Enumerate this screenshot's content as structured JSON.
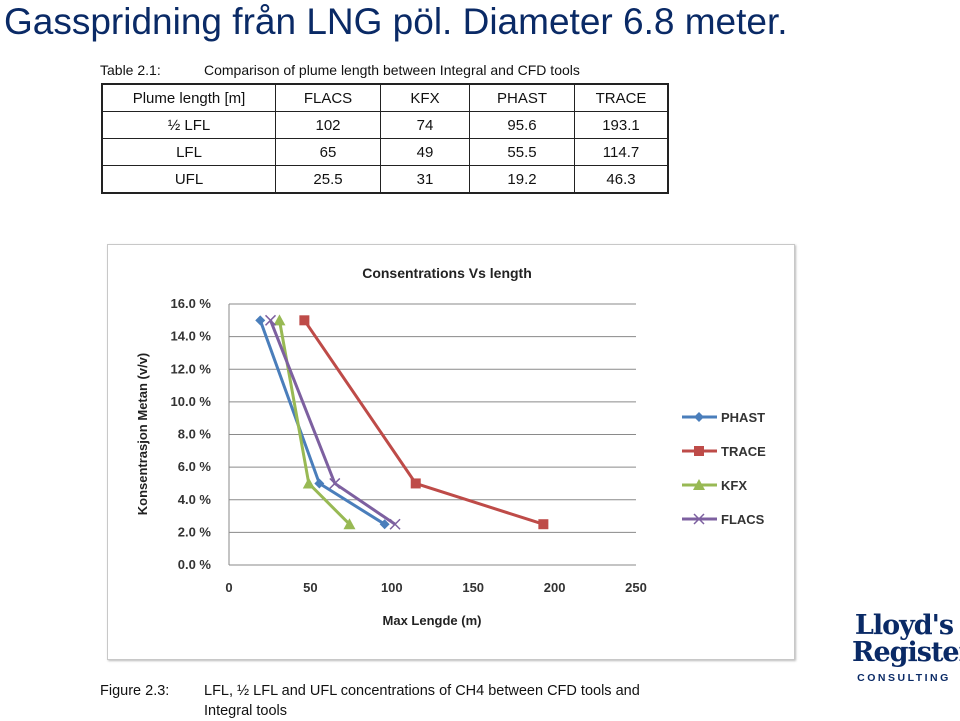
{
  "slide": {
    "title": "Gasspridning från LNG pöl. Diameter 6.8 meter."
  },
  "table": {
    "caption_label": "Table 2.1:",
    "caption_text": "Comparison of plume length between Integral and CFD tools",
    "headers": [
      "Plume length [m]",
      "FLACS",
      "KFX",
      "PHAST",
      "TRACE"
    ],
    "rows": [
      [
        "½ LFL",
        "102",
        "74",
        "95.6",
        "193.1"
      ],
      [
        "LFL",
        "65",
        "49",
        "55.5",
        "114.7"
      ],
      [
        "UFL",
        "25.5",
        "31",
        "19.2",
        "46.3"
      ]
    ]
  },
  "figure": {
    "caption_label": "Figure 2.3:",
    "caption_text_line1": "LFL, ½ LFL and UFL concentrations of CH4 between CFD tools and",
    "caption_text_line2": "Integral tools"
  },
  "logo": {
    "line1": "Lloyd's",
    "line2": "Register",
    "line3": "CONSULTING"
  },
  "chart_data": {
    "type": "line",
    "title": "Consentrations Vs length",
    "xlabel": "Max Lengde (m)",
    "ylabel": "Konsentrasjon Metan (v/v)",
    "xlim": [
      0,
      250
    ],
    "ylim": [
      0,
      16
    ],
    "xticks": [
      "0",
      "50",
      "100",
      "150",
      "200",
      "250"
    ],
    "yticks": [
      "0.0 %",
      "2.0 %",
      "4.0 %",
      "6.0 %",
      "8.0 %",
      "10.0 %",
      "12.0 %",
      "14.0 %",
      "16.0 %"
    ],
    "grid": true,
    "legend_position": "right",
    "series": [
      {
        "name": "PHAST",
        "color": "#4a7ebb",
        "marker": "diamond",
        "points": [
          [
            19.2,
            15
          ],
          [
            55.5,
            5
          ],
          [
            95.6,
            2.5
          ]
        ]
      },
      {
        "name": "TRACE",
        "color": "#be4b48",
        "marker": "square",
        "points": [
          [
            46.3,
            15
          ],
          [
            114.7,
            5
          ],
          [
            193.1,
            2.5
          ]
        ]
      },
      {
        "name": "KFX",
        "color": "#98b954",
        "marker": "triangle",
        "points": [
          [
            31,
            15
          ],
          [
            49,
            5
          ],
          [
            74,
            2.5
          ]
        ]
      },
      {
        "name": "FLACS",
        "color": "#7d60a0",
        "marker": "x",
        "points": [
          [
            25.5,
            15
          ],
          [
            65,
            5
          ],
          [
            102,
            2.5
          ]
        ]
      }
    ]
  }
}
